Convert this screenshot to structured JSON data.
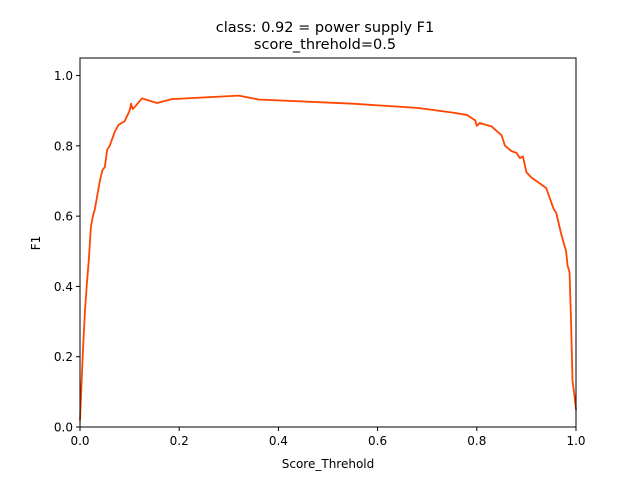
{
  "chart_data": {
    "type": "line",
    "title": "class: 0.92 = power supply F1",
    "subtitle": "score_threhold=0.5",
    "xlabel": "Score_Threhold",
    "ylabel": "F1",
    "xlim": [
      0.0,
      1.0
    ],
    "ylim": [
      0.0,
      1.05
    ],
    "grid": false,
    "legend": "none",
    "x_ticks": [
      "0.0",
      "0.2",
      "0.4",
      "0.6",
      "0.8",
      "1.0"
    ],
    "y_ticks": [
      "0.0",
      "0.2",
      "0.4",
      "0.6",
      "0.8",
      "1.0"
    ],
    "series": [
      {
        "color": "#ff4500",
        "x": [
          0.0,
          0.003,
          0.006,
          0.01,
          0.014,
          0.018,
          0.022,
          0.026,
          0.03,
          0.035,
          0.04,
          0.045,
          0.05,
          0.055,
          0.06,
          0.065,
          0.07,
          0.078,
          0.09,
          0.1,
          0.103,
          0.106,
          0.11,
          0.125,
          0.155,
          0.185,
          0.32,
          0.36,
          0.55,
          0.68,
          0.75,
          0.78,
          0.797,
          0.8,
          0.806,
          0.83,
          0.85,
          0.857,
          0.87,
          0.88,
          0.887,
          0.893,
          0.9,
          0.91,
          0.94,
          0.955,
          0.96,
          0.97,
          0.98,
          0.983,
          0.987,
          0.99,
          0.993,
          0.996,
          1.0
        ],
        "y": [
          0.02,
          0.12,
          0.22,
          0.33,
          0.41,
          0.48,
          0.57,
          0.6,
          0.62,
          0.66,
          0.7,
          0.73,
          0.74,
          0.79,
          0.8,
          0.82,
          0.84,
          0.86,
          0.87,
          0.9,
          0.92,
          0.905,
          0.91,
          0.935,
          0.922,
          0.933,
          0.943,
          0.932,
          0.92,
          0.908,
          0.895,
          0.888,
          0.872,
          0.857,
          0.865,
          0.855,
          0.83,
          0.8,
          0.785,
          0.78,
          0.765,
          0.77,
          0.725,
          0.71,
          0.68,
          0.62,
          0.61,
          0.55,
          0.5,
          0.46,
          0.44,
          0.3,
          0.13,
          0.1,
          0.05
        ]
      }
    ]
  }
}
